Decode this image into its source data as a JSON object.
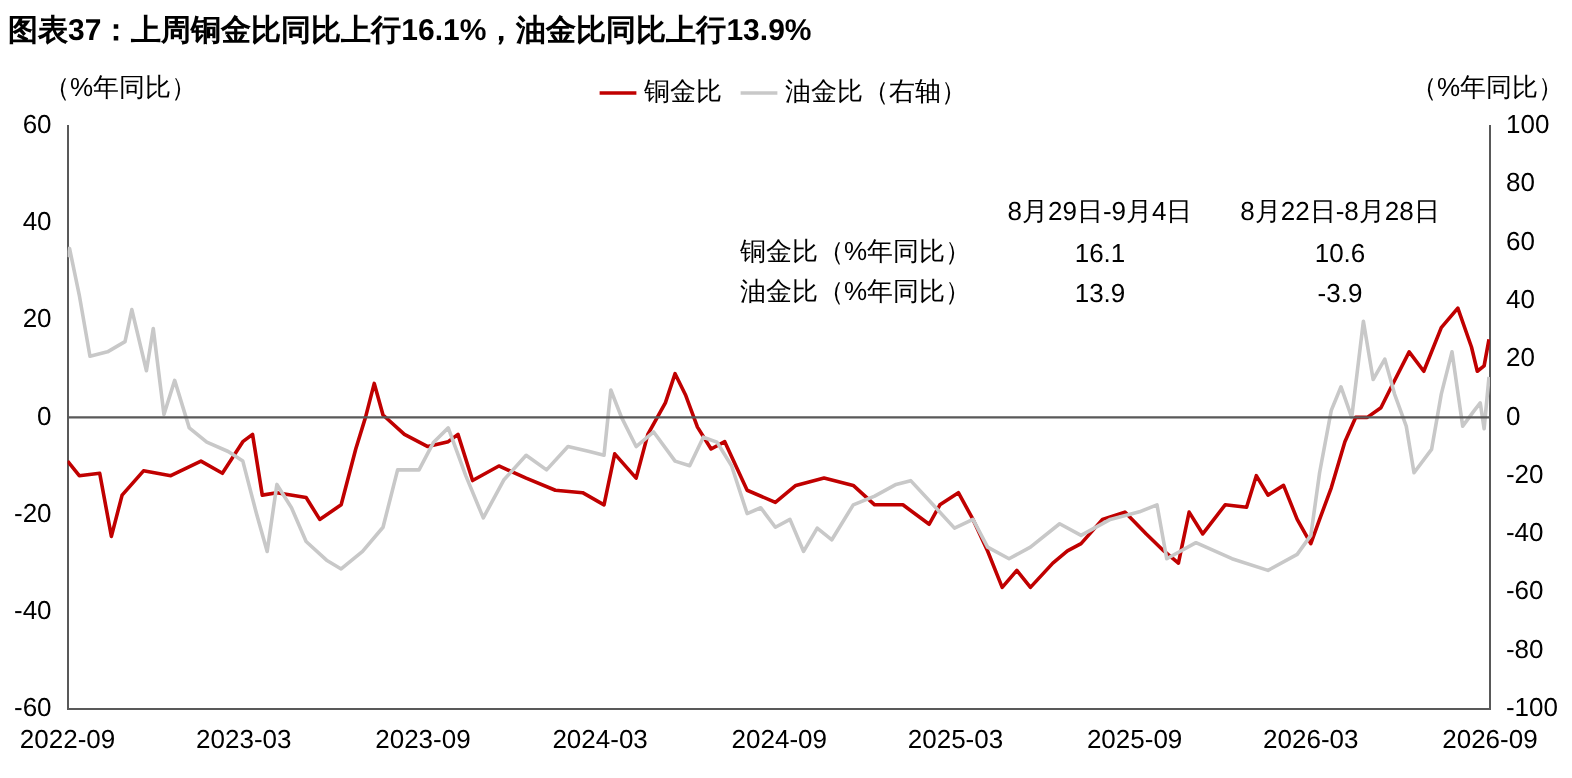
{
  "chart_data": {
    "type": "line",
    "title": "图表37：上周铜金比同比上行16.1%，油金比同比上行13.9%",
    "ylabel": "（%年同比）",
    "y2label": "（%年同比）",
    "annotations": [
      "8月29日-9月4日",
      "8月22日-8月28日",
      "铜金比（%年同比）",
      "16.1",
      "10.6",
      "油金比（%年同比）",
      "13.9",
      "-3.9"
    ],
    "xlim": [
      "2022-09",
      "2026-09"
    ],
    "xticks": [
      "2022-09",
      "2023-03",
      "2023-09",
      "2024-03",
      "2024-09",
      "2025-03",
      "2025-09",
      "2026-03",
      "2026-09"
    ],
    "ylim": [
      -60,
      60
    ],
    "yticks": [
      -60,
      -40,
      -20,
      0,
      20,
      40,
      60
    ],
    "y2lim": [
      -100,
      100
    ],
    "y2ticks": [
      -100,
      -80,
      -60,
      -40,
      -20,
      0,
      20,
      40,
      60,
      80,
      100
    ],
    "grid": false,
    "legend": "top",
    "line_style": "solid",
    "marker": "none",
    "ref_lines": [
      {
        "axis": "y",
        "value": 0,
        "color": "#595959"
      }
    ],
    "series": [
      {
        "name": "油金比（右轴）",
        "color": "#c8c8c8",
        "axis": "y2",
        "x": [
          "2022-09-01",
          "2022-09-03",
          "2022-09-13",
          "2022-09-24",
          "2022-10-12",
          "2022-10-30",
          "2022-11-06",
          "2022-11-21",
          "2022-11-28",
          "2022-12-09",
          "2022-12-20",
          "2023-01-04",
          "2023-01-22",
          "2023-02-13",
          "2023-02-28",
          "2023-03-14",
          "2023-03-25",
          "2023-04-04",
          "2023-04-19",
          "2023-05-04",
          "2023-05-25",
          "2023-06-09",
          "2023-07-01",
          "2023-07-22",
          "2023-08-06",
          "2023-08-28",
          "2023-09-12",
          "2023-09-27",
          "2023-10-15",
          "2023-11-02",
          "2023-11-23",
          "2023-12-16",
          "2024-01-06",
          "2024-01-28",
          "2024-02-19",
          "2024-03-05",
          "2024-03-12",
          "2024-03-23",
          "2024-04-07",
          "2024-04-25",
          "2024-05-17",
          "2024-06-01",
          "2024-06-15",
          "2024-06-29",
          "2024-07-14",
          "2024-07-30",
          "2024-08-13",
          "2024-08-28",
          "2024-09-12",
          "2024-09-26",
          "2024-10-10",
          "2024-10-25",
          "2024-11-16",
          "2024-12-08",
          "2024-12-30",
          "2025-01-14",
          "2025-02-06",
          "2025-02-28",
          "2025-03-19",
          "2025-04-03",
          "2025-04-25",
          "2025-05-17",
          "2025-06-16",
          "2025-07-08",
          "2025-08-07",
          "2025-09-06",
          "2025-09-24",
          "2025-10-04",
          "2025-11-03",
          "2025-12-10",
          "2026-01-16",
          "2026-02-15",
          "2026-03-01",
          "2026-03-10",
          "2026-03-22",
          "2026-04-01",
          "2026-04-12",
          "2026-04-24",
          "2026-05-04",
          "2026-05-16",
          "2026-05-26",
          "2026-06-07",
          "2026-06-15",
          "2026-07-03",
          "2026-07-13",
          "2026-07-24",
          "2026-08-04",
          "2026-08-16",
          "2026-08-22",
          "2026-08-26",
          "2026-08-31"
        ],
        "values": [
          55,
          58,
          42,
          21,
          22.5,
          26,
          37,
          16,
          30.5,
          1,
          12.7,
          -3.6,
          -8.5,
          -11.7,
          -15,
          -33,
          -46,
          -23,
          -31,
          -42.6,
          -49,
          -52,
          -46,
          -37.7,
          -18,
          -18,
          -8.5,
          -3.6,
          -20,
          -34.5,
          -21.5,
          -13,
          -18,
          -10,
          -11.7,
          -13,
          9.4,
          0,
          -10,
          -5,
          -15,
          -16.6,
          -6.8,
          -8.5,
          -16.6,
          -33,
          -31,
          -37.7,
          -35,
          -46,
          -38,
          -42,
          -30,
          -27,
          -23,
          -21.7,
          -30,
          -38,
          -35,
          -44.5,
          -48.5,
          -44.5,
          -36.5,
          -40.5,
          -35,
          -32.4,
          -30,
          -48.5,
          -43,
          -48.5,
          -52.5,
          -47,
          -40.5,
          -19,
          2.4,
          10.5,
          0,
          33,
          13,
          20,
          8,
          -3,
          -19,
          -11,
          8,
          22.5,
          -3,
          2.4,
          5,
          -3.9,
          13.9
        ]
      },
      {
        "name": "铜金比",
        "color": "#c00000",
        "x": [
          "2022-09-01",
          "2022-09-13",
          "2022-10-04",
          "2022-10-16",
          "2022-10-27",
          "2022-11-18",
          "2022-12-16",
          "2023-01-16",
          "2023-02-07",
          "2023-02-28",
          "2023-03-10",
          "2023-03-20",
          "2023-04-04",
          "2023-05-04",
          "2023-05-18",
          "2023-06-09",
          "2023-06-24",
          "2023-07-04",
          "2023-07-13",
          "2023-07-22",
          "2023-08-13",
          "2023-09-06",
          "2023-09-27",
          "2023-10-07",
          "2023-10-22",
          "2023-11-18",
          "2023-12-16",
          "2024-01-15",
          "2024-02-12",
          "2024-03-05",
          "2024-03-16",
          "2024-04-07",
          "2024-04-19",
          "2024-05-07",
          "2024-05-17",
          "2024-05-28",
          "2024-06-09",
          "2024-06-23",
          "2024-07-07",
          "2024-07-30",
          "2024-08-28",
          "2024-09-18",
          "2024-10-17",
          "2024-11-16",
          "2024-12-08",
          "2025-01-06",
          "2025-02-02",
          "2025-02-13",
          "2025-03-04",
          "2025-03-19",
          "2025-04-03",
          "2025-04-18",
          "2025-05-03",
          "2025-05-17",
          "2025-06-09",
          "2025-06-24",
          "2025-07-08",
          "2025-07-30",
          "2025-08-22",
          "2025-09-13",
          "2025-10-01",
          "2025-10-16",
          "2025-10-27",
          "2025-11-10",
          "2025-12-03",
          "2025-12-25",
          "2026-01-04",
          "2026-01-16",
          "2026-02-01",
          "2026-02-15",
          "2026-03-01",
          "2026-03-10",
          "2026-03-22",
          "2026-04-05",
          "2026-04-16",
          "2026-04-28",
          "2026-05-12",
          "2026-05-22",
          "2026-06-10",
          "2026-06-25",
          "2026-07-13",
          "2026-07-30",
          "2026-08-13",
          "2026-08-19",
          "2026-08-26",
          "2026-08-31"
        ],
        "values": [
          -9,
          -12,
          -11.5,
          -24.5,
          -16,
          -11,
          -12,
          -9,
          -11.5,
          -5,
          -3.5,
          -16,
          -15.5,
          -16.5,
          -21,
          -18,
          -6.5,
          0,
          7,
          0.5,
          -3.5,
          -6,
          -5,
          -3.5,
          -13,
          -10,
          -12.5,
          -15,
          -15.5,
          -18,
          -7.5,
          -12.5,
          -3.5,
          3,
          9,
          4.5,
          -2,
          -6.5,
          -5,
          -15,
          -17.5,
          -14,
          -12.5,
          -14,
          -18,
          -18,
          -22,
          -18,
          -15.5,
          -21,
          -27.5,
          -35,
          -31.5,
          -35,
          -30,
          -27.5,
          -26,
          -21,
          -19.5,
          -24,
          -27.5,
          -30,
          -19.5,
          -24,
          -18,
          -18.5,
          -12,
          -16,
          -14,
          -21,
          -26,
          -21,
          -14.5,
          -5,
          0,
          0,
          2,
          6,
          13.5,
          9.5,
          18.5,
          22.5,
          14.5,
          9.5,
          10.6,
          16.1
        ]
      }
    ]
  }
}
